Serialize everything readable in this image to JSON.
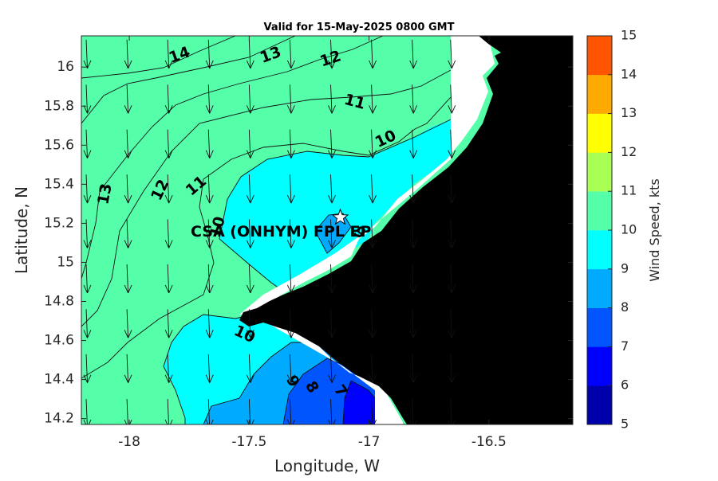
{
  "chart_data": {
    "type": "contour",
    "title": "Valid for 15-May-2025 0800 GMT",
    "xlabel": "Longitude, W",
    "ylabel": "Latitude, N",
    "xlim": [
      -18.2,
      -16.15
    ],
    "ylim": [
      14.17,
      16.16
    ],
    "xticks": [
      -18,
      -17.5,
      -17,
      -16.5
    ],
    "xtick_labels": [
      "-18",
      "-17.5",
      "-17",
      "-16.5"
    ],
    "yticks": [
      14.2,
      14.4,
      14.6,
      14.8,
      15,
      15.2,
      15.4,
      15.6,
      15.8,
      16
    ],
    "ytick_labels": [
      "14.2",
      "14.4",
      "14.6",
      "14.8",
      "15",
      "15.2",
      "15.4",
      "15.6",
      "15.8",
      "16"
    ],
    "colorbar": {
      "label": "Wind Speed, kts",
      "levels": [
        5,
        6,
        7,
        8,
        9,
        10,
        11,
        12,
        13,
        14,
        15
      ],
      "tick_labels": [
        "5",
        "6",
        "7",
        "8",
        "9",
        "10",
        "11",
        "12",
        "13",
        "14",
        "15"
      ],
      "colors": [
        "#0000aa",
        "#0000ff",
        "#0055ff",
        "#00aaff",
        "#00ffff",
        "#55ffaa",
        "#aaff55",
        "#ffff00",
        "#ffaa00",
        "#ff5500"
      ]
    },
    "land_color": "#000000",
    "coast_color": "#ffffff",
    "contour_labels": [
      {
        "text": "14",
        "x": -17.79,
        "y": 16.06,
        "rot": -20
      },
      {
        "text": "13",
        "x": -17.41,
        "y": 16.06,
        "rot": -20
      },
      {
        "text": "12",
        "x": -17.16,
        "y": 16.04,
        "rot": -18
      },
      {
        "text": "11",
        "x": -17.06,
        "y": 15.82,
        "rot": 15
      },
      {
        "text": "10",
        "x": -16.93,
        "y": 15.63,
        "rot": -25
      },
      {
        "text": "13",
        "x": -18.1,
        "y": 15.35,
        "rot": -80
      },
      {
        "text": "12",
        "x": -17.87,
        "y": 15.37,
        "rot": -65
      },
      {
        "text": "11",
        "x": -17.72,
        "y": 15.39,
        "rot": -40
      },
      {
        "text": "10",
        "x": -17.63,
        "y": 15.18,
        "rot": -75
      },
      {
        "text": "9",
        "x": -17.04,
        "y": 15.15,
        "rot": 40
      },
      {
        "text": "10",
        "x": -17.52,
        "y": 14.63,
        "rot": 25
      },
      {
        "text": "9",
        "x": -17.32,
        "y": 14.39,
        "rot": 60
      },
      {
        "text": "8",
        "x": -17.24,
        "y": 14.36,
        "rot": 60
      },
      {
        "text": "7",
        "x": -17.12,
        "y": 14.34,
        "rot": 55
      }
    ],
    "station": {
      "name": "CSA (ONHYM) FPL EP",
      "lon": -17.12,
      "lat": 15.23
    },
    "wind": {
      "lons": [
        -18.18,
        -18.01,
        -17.84,
        -17.67,
        -17.5,
        -17.33,
        -17.16,
        -16.99,
        -16.82,
        -16.66
      ],
      "lats": [
        16.14,
        15.91,
        15.68,
        15.45,
        15.22,
        14.99,
        14.76,
        14.53,
        14.3
      ],
      "direction": "from north, slightly from the east",
      "max_knots": 15
    }
  }
}
